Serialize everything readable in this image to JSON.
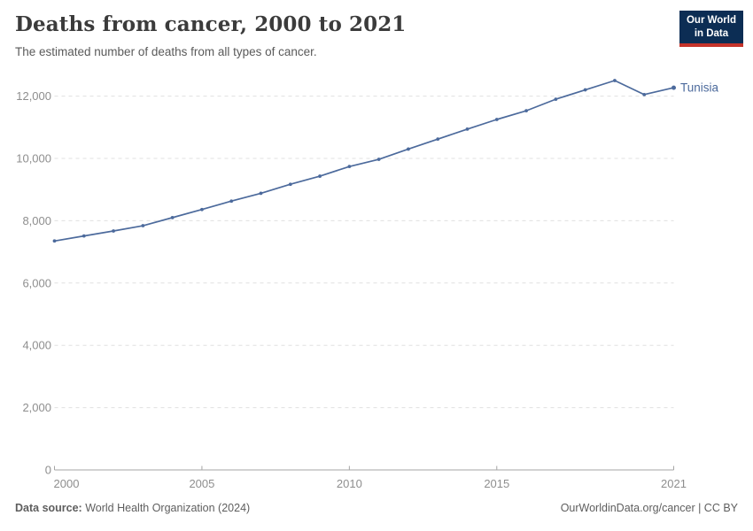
{
  "header": {
    "title": "Deaths from cancer, 2000 to 2021",
    "subtitle": "The estimated number of deaths from all types of cancer.",
    "logo": {
      "line1": "Our World",
      "line2": "in Data"
    }
  },
  "chart_data": {
    "type": "line",
    "title": "Deaths from cancer, 2000 to 2021",
    "subtitle": "The estimated number of deaths from all types of cancer.",
    "x": [
      2000,
      2001,
      2002,
      2003,
      2004,
      2005,
      2006,
      2007,
      2008,
      2009,
      2010,
      2011,
      2012,
      2013,
      2014,
      2015,
      2016,
      2017,
      2018,
      2019,
      2020,
      2021
    ],
    "series": [
      {
        "name": "Tunisia",
        "color": "#4c6a9c",
        "values": [
          7350,
          7510,
          7670,
          7840,
          8100,
          8360,
          8630,
          8880,
          9170,
          9430,
          9740,
          9970,
          10300,
          10620,
          10940,
          11250,
          11530,
          11900,
          12200,
          12500,
          12050,
          12270
        ]
      }
    ],
    "xlabel": "",
    "ylabel": "",
    "xlim": [
      2000,
      2021
    ],
    "ylim": [
      0,
      12600
    ],
    "x_ticks": [
      2000,
      2005,
      2010,
      2015,
      2021
    ],
    "x_tick_labels": [
      "2000",
      "2005",
      "2010",
      "2015",
      "2021"
    ],
    "y_ticks": [
      0,
      2000,
      4000,
      6000,
      8000,
      10000,
      12000
    ],
    "y_tick_labels": [
      "0",
      "2,000",
      "4,000",
      "6,000",
      "8,000",
      "10,000",
      "12,000"
    ],
    "grid": "horizontal dashed",
    "legend": "end-of-line label"
  },
  "footer": {
    "data_source_label": "Data source:",
    "data_source_value": "World Health Organization (2024)",
    "credit": "OurWorldinData.org/cancer | CC BY"
  },
  "colors": {
    "series": "#4c6a9c",
    "grid": "#e0e0e0",
    "axis": "#a5a5a5",
    "tick_text": "#8e8e8e",
    "title_text": "#3b3b3b",
    "subtitle_text": "#5a5a5a",
    "footer_text": "#5e5e5e",
    "logo_bg": "#0c2d54",
    "logo_accent": "#c5332a"
  }
}
